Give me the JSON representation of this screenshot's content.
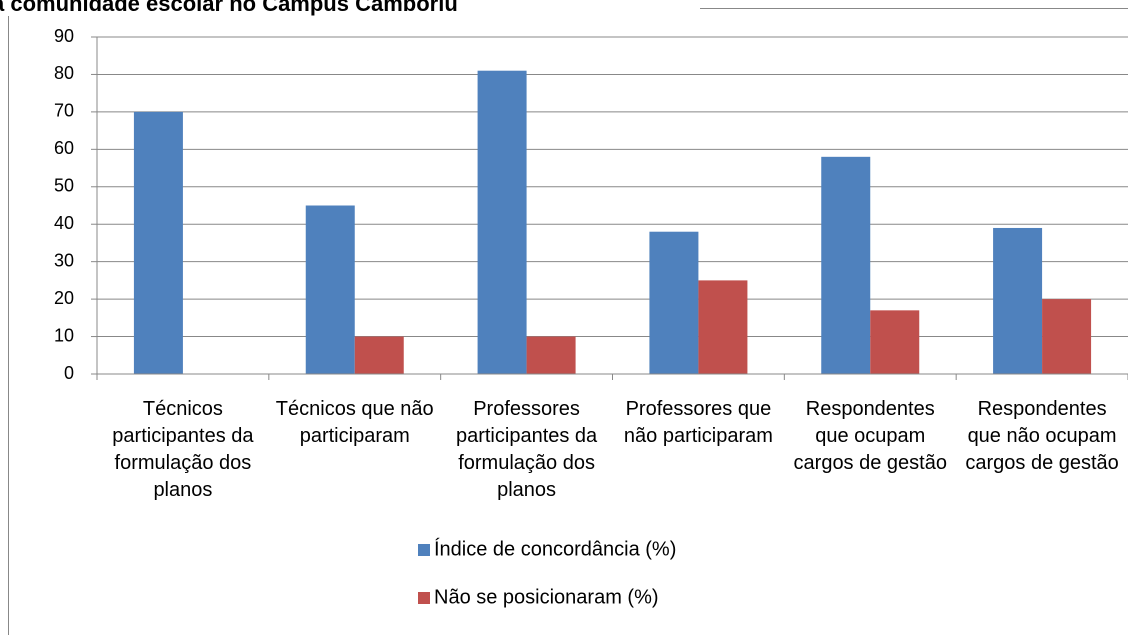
{
  "chart_data": {
    "type": "bar",
    "title": "a comunidade escolar no Campus Camboriú",
    "categories": [
      "Técnicos participantes da formulação dos planos",
      "Técnicos que não participaram",
      "Professores participantes da formulação dos planos",
      "Professores que não participaram",
      "Respondentes que ocupam cargos de gestão",
      "Respondentes que não ocupam cargos de gestão"
    ],
    "series": [
      {
        "name": "Índice de concordância (%)",
        "color": "#4f81bd",
        "values": [
          70,
          45,
          81,
          38,
          58,
          39
        ]
      },
      {
        "name": "Não se posicionaram (%)",
        "color": "#c0504d",
        "values": [
          null,
          10,
          10,
          25,
          17,
          20
        ]
      }
    ],
    "ylim": [
      0,
      90
    ],
    "yticks": [
      0,
      10,
      20,
      30,
      40,
      50,
      60,
      70,
      80,
      90
    ],
    "grid": true,
    "legend": "bottom"
  }
}
